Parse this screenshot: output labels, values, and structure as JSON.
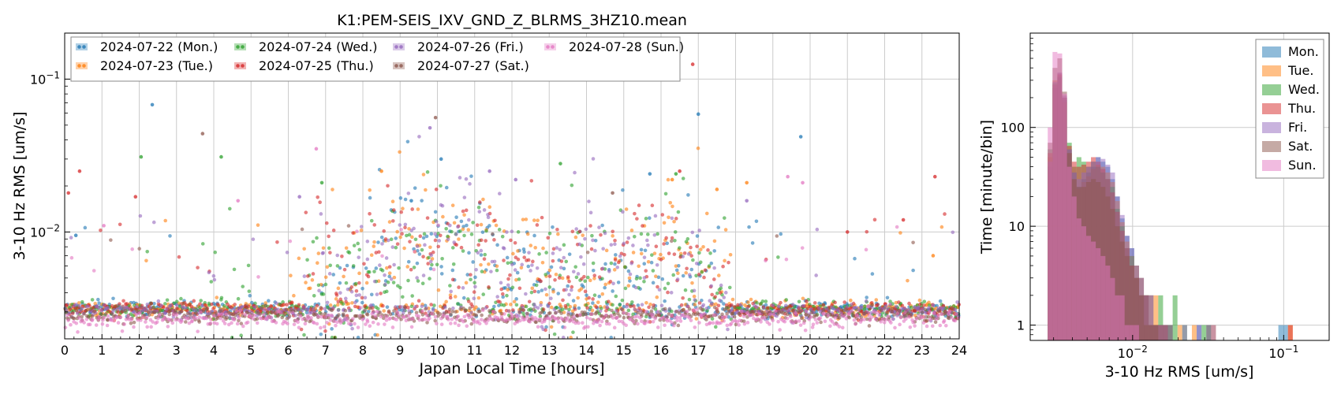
{
  "chart_data": [
    {
      "type": "scatter",
      "title": "K1:PEM-SEIS_IXV_GND_Z_BLRMS_3HZ10.mean",
      "xlabel": "Japan Local Time [hours]",
      "ylabel": "3-10 Hz RMS [um/s]",
      "xlim": [
        0,
        24
      ],
      "ylim": [
        0.002,
        0.2
      ],
      "yscale": "log",
      "grid": true,
      "legend_position": "top-left",
      "x_ticks": [
        "0",
        "1",
        "2",
        "3",
        "4",
        "5",
        "6",
        "7",
        "8",
        "9",
        "10",
        "11",
        "12",
        "13",
        "14",
        "15",
        "16",
        "17",
        "18",
        "19",
        "20",
        "21",
        "22",
        "23",
        "24"
      ],
      "y_ticks": [
        {
          "value": 0.01,
          "base": "10",
          "exp": "−2"
        },
        {
          "value": 0.1,
          "base": "10",
          "exp": "−1"
        }
      ],
      "baseline_level": 0.003,
      "series": [
        {
          "name": "2024-07-22 (Mon.)",
          "color": "#1f77b4",
          "profile": [
            [
              0,
              0.0033
            ],
            [
              6,
              0.0033
            ],
            [
              8,
              0.0045
            ],
            [
              9,
              0.009
            ],
            [
              10,
              0.009
            ],
            [
              11,
              0.0075
            ],
            [
              12,
              0.0055
            ],
            [
              13,
              0.0045
            ],
            [
              14,
              0.005
            ],
            [
              15,
              0.006
            ],
            [
              16,
              0.007
            ],
            [
              17,
              0.005
            ],
            [
              18,
              0.0035
            ],
            [
              24,
              0.0033
            ]
          ],
          "outliers": [
            [
              2.35,
              0.068
            ],
            [
              17.0,
              0.059
            ],
            [
              19.75,
              0.042
            ],
            [
              0.3,
              0.0095
            ],
            [
              10.1,
              0.03
            ],
            [
              9.3,
              0.016
            ],
            [
              15.7,
              0.024
            ]
          ]
        },
        {
          "name": "2024-07-23 (Tue.)",
          "color": "#ff7f0e",
          "profile": [
            [
              0,
              0.0033
            ],
            [
              4,
              0.0035
            ],
            [
              5,
              0.0035
            ],
            [
              7,
              0.004
            ],
            [
              9,
              0.009
            ],
            [
              11,
              0.008
            ],
            [
              12,
              0.006
            ],
            [
              14,
              0.005
            ],
            [
              16,
              0.008
            ],
            [
              17,
              0.006
            ],
            [
              18,
              0.0035
            ],
            [
              24,
              0.0034
            ]
          ],
          "outliers": [
            [
              8.5,
              0.025
            ],
            [
              16.3,
              0.022
            ],
            [
              17.5,
              0.019
            ],
            [
              18.3,
              0.021
            ],
            [
              23.3,
              0.007
            ]
          ]
        },
        {
          "name": "2024-07-24 (Wed.)",
          "color": "#2ca02c",
          "profile": [
            [
              0,
              0.0033
            ],
            [
              3,
              0.0033
            ],
            [
              4,
              0.004
            ],
            [
              6,
              0.0035
            ],
            [
              8,
              0.005
            ],
            [
              10,
              0.008
            ],
            [
              12,
              0.005
            ],
            [
              13,
              0.0045
            ],
            [
              14,
              0.005
            ],
            [
              15,
              0.006
            ],
            [
              16,
              0.009
            ],
            [
              17,
              0.006
            ],
            [
              18,
              0.0035
            ],
            [
              24,
              0.0033
            ]
          ],
          "outliers": [
            [
              2.05,
              0.031
            ],
            [
              4.2,
              0.031
            ],
            [
              13.3,
              0.028
            ],
            [
              16.4,
              0.024
            ],
            [
              6.9,
              0.021
            ]
          ]
        },
        {
          "name": "2024-07-25 (Thu.)",
          "color": "#d62728",
          "profile": [
            [
              0,
              0.0033
            ],
            [
              6,
              0.0034
            ],
            [
              7,
              0.005
            ],
            [
              8,
              0.0065
            ],
            [
              9,
              0.008
            ],
            [
              10,
              0.008
            ],
            [
              11,
              0.007
            ],
            [
              12,
              0.0055
            ],
            [
              13,
              0.0055
            ],
            [
              14,
              0.005
            ],
            [
              15,
              0.006
            ],
            [
              16,
              0.008
            ],
            [
              17,
              0.0055
            ],
            [
              18,
              0.0035
            ],
            [
              24,
              0.0033
            ]
          ],
          "outliers": [
            [
              16.85,
              0.125
            ],
            [
              0.4,
              0.025
            ],
            [
              23.35,
              0.023
            ],
            [
              0.1,
              0.018
            ],
            [
              1.9,
              0.017
            ],
            [
              16.5,
              0.025
            ],
            [
              21.0,
              0.01
            ],
            [
              22.5,
              0.012
            ]
          ]
        },
        {
          "name": "2024-07-26 (Fri.)",
          "color": "#9467bd",
          "profile": [
            [
              0,
              0.0032
            ],
            [
              6,
              0.0033
            ],
            [
              8,
              0.0045
            ],
            [
              9,
              0.0085
            ],
            [
              10,
              0.01
            ],
            [
              11,
              0.009
            ],
            [
              12,
              0.006
            ],
            [
              13,
              0.005
            ],
            [
              14,
              0.0055
            ],
            [
              15,
              0.0065
            ],
            [
              16,
              0.007
            ],
            [
              17,
              0.0055
            ],
            [
              18,
              0.0034
            ],
            [
              24,
              0.0033
            ]
          ],
          "outliers": [
            [
              9.8,
              0.048
            ],
            [
              11.4,
              0.025
            ],
            [
              12.1,
              0.022
            ],
            [
              6.3,
              0.017
            ],
            [
              18.3,
              0.016
            ]
          ]
        },
        {
          "name": "2024-07-27 (Sat.)",
          "color": "#8c564b",
          "profile": [
            [
              0,
              0.003
            ],
            [
              24,
              0.0031
            ]
          ],
          "outliers": [
            [
              3.7,
              0.044
            ],
            [
              9.95,
              0.056
            ],
            [
              14.7,
              0.018
            ]
          ]
        },
        {
          "name": "2024-07-28 (Sun.)",
          "color": "#e377c2",
          "profile": [
            [
              0,
              0.0028
            ],
            [
              24,
              0.0028
            ]
          ],
          "outliers": [
            [
              6.75,
              0.035
            ],
            [
              19.4,
              0.023
            ],
            [
              1.05,
              0.011
            ],
            [
              19.8,
              0.021
            ],
            [
              4.65,
              0.016
            ]
          ]
        }
      ]
    },
    {
      "type": "histogram",
      "xlabel": "3-10 Hz RMS [um/s]",
      "ylabel": "Time [minute/bin]",
      "xscale": "log",
      "yscale": "log",
      "xlim": [
        0.0021,
        0.2
      ],
      "ylim": [
        0.7,
        900
      ],
      "grid": true,
      "legend_position": "top-right",
      "x_ticks": [
        {
          "value": 0.01,
          "base": "10",
          "exp": "−2"
        },
        {
          "value": 0.1,
          "base": "10",
          "exp": "−1"
        }
      ],
      "y_ticks": [
        {
          "value": 1,
          "label": "1"
        },
        {
          "value": 10,
          "label": "10"
        },
        {
          "value": 100,
          "label": "100"
        }
      ],
      "bin_start": 0.00255,
      "bin_width_log10": 0.0318,
      "series": [
        {
          "name": "Mon.",
          "color": "#1f77b4",
          "counts": [
            0,
            40,
            250,
            330,
            200,
            60,
            35,
            25,
            30,
            35,
            40,
            50,
            45,
            40,
            30,
            20,
            12,
            8,
            6,
            4,
            3,
            2,
            2,
            1,
            1,
            1,
            1,
            0,
            0,
            0,
            0,
            0,
            1,
            0,
            1,
            0,
            0,
            0,
            0,
            0,
            0,
            0,
            0,
            0,
            0,
            0,
            0,
            0,
            0,
            1,
            1
          ]
        },
        {
          "name": "Tue.",
          "color": "#ff7f0e",
          "counts": [
            0,
            50,
            300,
            340,
            180,
            55,
            30,
            24,
            28,
            32,
            38,
            42,
            40,
            35,
            28,
            18,
            11,
            7,
            5,
            4,
            3,
            2,
            2,
            2,
            1,
            1,
            1,
            0,
            1,
            0,
            0,
            1,
            0,
            0,
            0,
            1,
            0,
            0,
            0,
            0,
            0,
            0,
            0,
            0,
            0,
            0,
            0,
            0,
            0,
            0,
            0,
            1
          ]
        },
        {
          "name": "Wed.",
          "color": "#2ca02c",
          "counts": [
            0,
            60,
            280,
            320,
            190,
            70,
            40,
            50,
            45,
            40,
            45,
            40,
            35,
            30,
            25,
            15,
            10,
            6,
            5,
            3,
            2,
            2,
            1,
            1,
            2,
            1,
            1,
            2,
            0,
            1,
            0,
            0,
            0,
            1,
            0,
            0,
            0,
            0,
            0,
            0,
            0,
            0,
            0,
            0,
            0,
            0,
            0,
            0,
            0,
            0,
            0
          ]
        },
        {
          "name": "Thu.",
          "color": "#d62728",
          "counts": [
            0,
            55,
            270,
            350,
            200,
            65,
            45,
            40,
            42,
            45,
            50,
            45,
            38,
            30,
            22,
            14,
            9,
            6,
            4,
            3,
            2,
            2,
            1,
            1,
            1,
            1,
            0,
            0,
            0,
            0,
            0,
            0,
            0,
            0,
            0,
            0,
            0,
            0,
            0,
            0,
            0,
            0,
            0,
            0,
            0,
            0,
            0,
            0,
            0,
            0,
            0,
            1
          ]
        },
        {
          "name": "Fri.",
          "color": "#9467bd",
          "counts": [
            0,
            45,
            290,
            360,
            210,
            60,
            35,
            30,
            35,
            40,
            45,
            50,
            48,
            42,
            35,
            20,
            13,
            8,
            6,
            4,
            3,
            2,
            2,
            1,
            1,
            1,
            1,
            0,
            0,
            1,
            0,
            0,
            1,
            0,
            0,
            1,
            0,
            0,
            0,
            0,
            0,
            0,
            0,
            0,
            0,
            0,
            0,
            0,
            0,
            0,
            0
          ]
        },
        {
          "name": "Sat.",
          "color": "#8c564b",
          "counts": [
            0,
            70,
            400,
            500,
            230,
            55,
            30,
            25,
            25,
            28,
            30,
            28,
            25,
            20,
            15,
            10,
            7,
            5,
            4,
            3,
            2,
            1,
            1,
            1,
            0,
            0,
            0,
            0,
            0,
            0,
            0,
            0,
            0,
            0,
            1,
            0,
            0,
            0,
            0,
            0,
            0,
            0,
            0,
            0,
            0,
            0,
            0,
            0,
            0,
            0,
            0
          ]
        },
        {
          "name": "Sun.",
          "color": "#e377c2",
          "counts": [
            0,
            100,
            580,
            560,
            220,
            40,
            20,
            12,
            10,
            8,
            7,
            6,
            5,
            4,
            3,
            2,
            2,
            1,
            1,
            1,
            0,
            0,
            0,
            0,
            0,
            0,
            0,
            0,
            0,
            0,
            0,
            0,
            0,
            0,
            0,
            0,
            0,
            0,
            0,
            0,
            0,
            0,
            0,
            0,
            0,
            0,
            0,
            0,
            0,
            0,
            0
          ]
        }
      ]
    }
  ]
}
